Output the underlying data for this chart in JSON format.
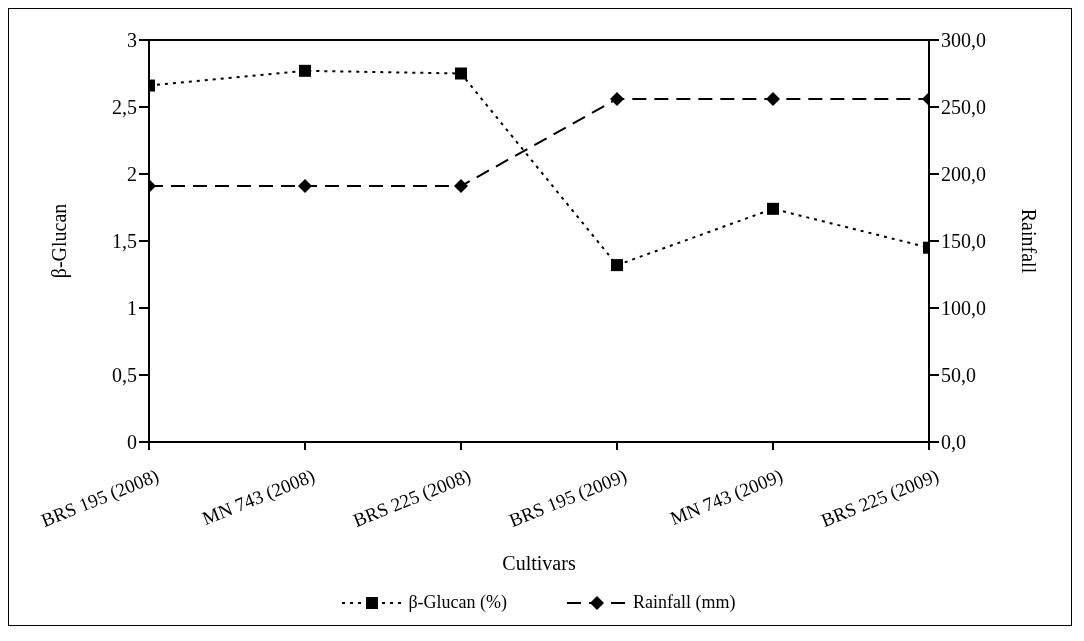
{
  "chart_data": {
    "type": "line",
    "xlabel": "Cultivars",
    "ylabel": "β-Glucan",
    "y2label": "Rainfall",
    "categories": [
      "BRS 195 (2008)",
      "MN 743 (2008)",
      "BRS 225 (2008)",
      "BRS 195 (2009)",
      "MN 743 (2009)",
      "BRS 225 (2009)"
    ],
    "series": [
      {
        "name": "β-Glucan (%)",
        "color": "#000000",
        "values": [
          2.66,
          2.77,
          2.75,
          1.32,
          1.74,
          1.45
        ],
        "marker": "square",
        "line_style": "dotted"
      },
      {
        "name": "Rainfall (mm)",
        "color": "#000000",
        "values": [
          191,
          191,
          191,
          256,
          256,
          256
        ],
        "marker": "diamond",
        "line_style": "dashed",
        "axis": "y2"
      }
    ],
    "ylim": [
      0,
      3
    ],
    "yticks": [
      0,
      {
        "value": 0.5,
        "label": "0,5"
      },
      1,
      {
        "value": 1.5,
        "label": "1,5"
      },
      2,
      {
        "value": 2.5,
        "label": "2,5"
      },
      3
    ],
    "y2lim": [
      0,
      300
    ],
    "y2ticks": [
      {
        "value": 0,
        "label": "0,0"
      },
      {
        "value": 50,
        "label": "50,0"
      },
      {
        "value": 100,
        "label": "100,0"
      },
      {
        "value": 150,
        "label": "150,0"
      },
      {
        "value": 200,
        "label": "200,0"
      },
      {
        "value": 250,
        "label": "250,0"
      },
      {
        "value": 300,
        "label": "300,0"
      }
    ],
    "grid": false,
    "legend": "bottom"
  }
}
